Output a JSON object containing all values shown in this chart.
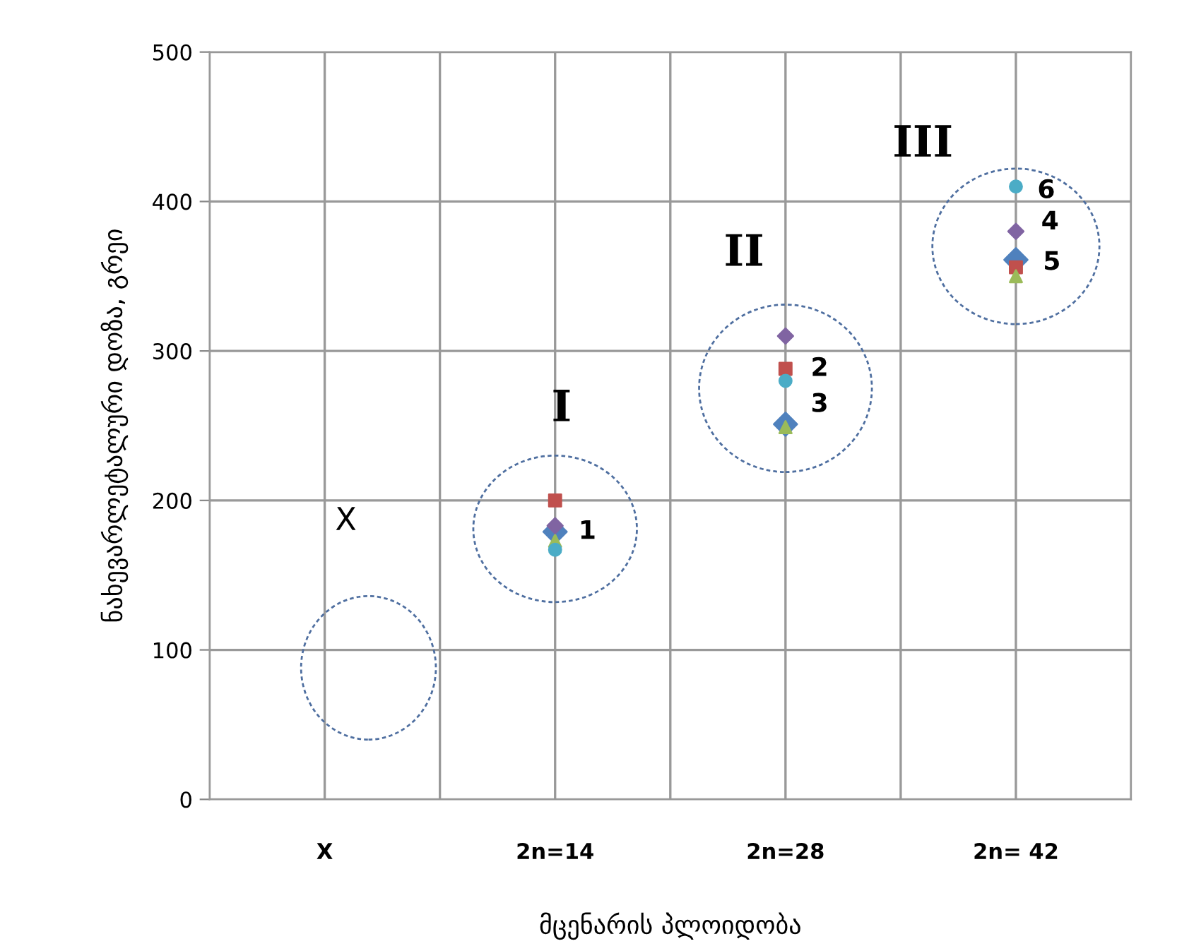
{
  "chart_data": {
    "type": "scatter",
    "xlabel": "მცენარის პლოიდობა",
    "ylabel": "ნახევარლეტალური დოზა, გრეი",
    "categories": [
      "X",
      "2n=14",
      "2n=28",
      "2n= 42"
    ],
    "ylim": [
      0,
      500
    ],
    "yticks": [
      0,
      100,
      200,
      300,
      400,
      500
    ],
    "grid": true,
    "series": [
      {
        "color": "#4f81bd",
        "marker": "diamond",
        "x": [
          "2n=14",
          "2n=28",
          "2n= 42"
        ],
        "values": [
          179,
          251,
          361
        ]
      },
      {
        "color": "#c0504d",
        "marker": "square",
        "x": [
          "2n=14",
          "2n=28",
          "2n= 42"
        ],
        "values": [
          200,
          288,
          356
        ]
      },
      {
        "color": "#9bbb59",
        "marker": "triangle",
        "x": [
          "2n=14",
          "2n=28",
          "2n= 42"
        ],
        "values": [
          173,
          249,
          350
        ]
      },
      {
        "color": "#8064a2",
        "marker": "diamond",
        "x": [
          "2n=14",
          "2n=28",
          "2n= 42"
        ],
        "values": [
          183,
          310,
          380
        ]
      },
      {
        "color": "#4bacc6",
        "marker": "circle",
        "x": [
          "2n=14",
          "2n=28",
          "2n= 42"
        ],
        "values": [
          167,
          280,
          410
        ]
      }
    ],
    "annotations": [
      "X",
      "I",
      "II",
      "III",
      "1",
      "2",
      "3",
      "6",
      "4",
      "5"
    ]
  }
}
